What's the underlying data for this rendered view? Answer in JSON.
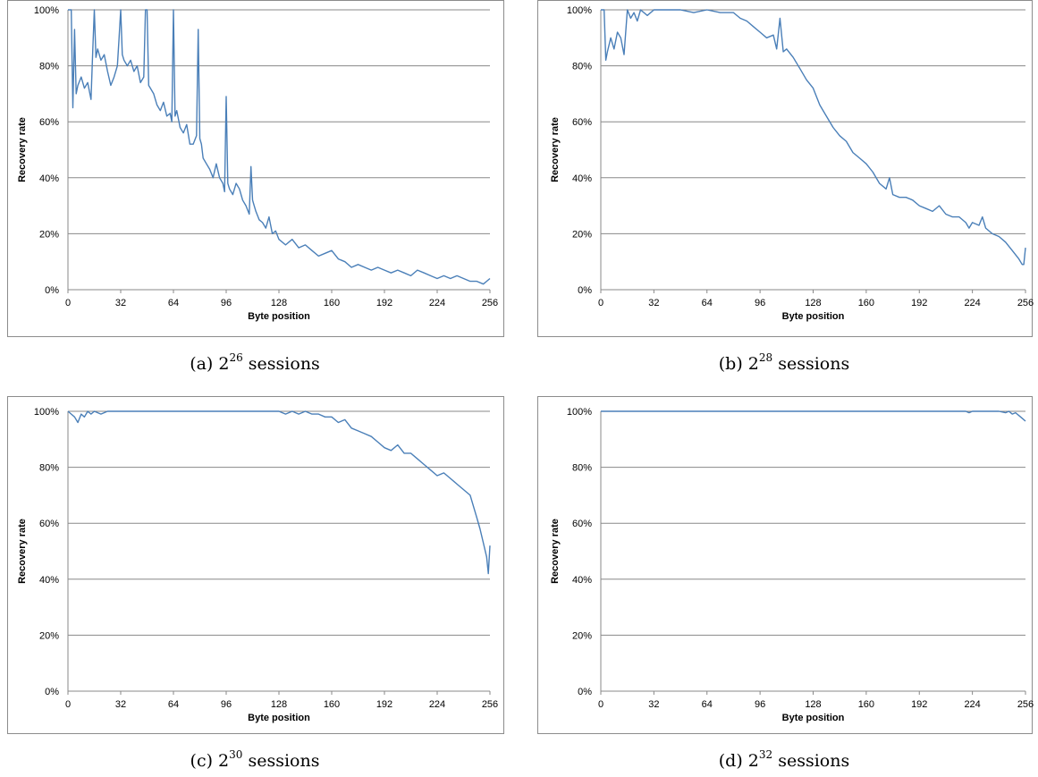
{
  "captions": [
    {
      "prefix": "(a) ",
      "base": "2",
      "exp": "26",
      "suffix": " sessions"
    },
    {
      "prefix": "(b) ",
      "base": "2",
      "exp": "28",
      "suffix": " sessions"
    },
    {
      "prefix": "(c) ",
      "base": "2",
      "exp": "30",
      "suffix": " sessions"
    },
    {
      "prefix": "(d) ",
      "base": "2",
      "exp": "32",
      "suffix": " sessions"
    }
  ],
  "colors": {
    "line": "#4a7fb8",
    "grid": "#888888",
    "axis": "#888888"
  },
  "chart_data": [
    {
      "type": "line",
      "xlabel": "Byte position",
      "ylabel": "Recovery rate",
      "xlim": [
        0,
        256
      ],
      "ylim": [
        0,
        100
      ],
      "xticks": [
        "0",
        "32",
        "64",
        "96",
        "128",
        "160",
        "192",
        "224",
        "256"
      ],
      "yticks": [
        "0%",
        "20%",
        "40%",
        "60%",
        "80%",
        "100%"
      ],
      "grid": true,
      "series": [
        {
          "x": [
            0,
            1,
            2,
            3,
            4,
            5,
            6,
            8,
            10,
            12,
            14,
            15,
            16,
            17,
            18,
            20,
            22,
            24,
            26,
            28,
            30,
            31,
            32,
            33,
            34,
            36,
            38,
            40,
            42,
            44,
            46,
            47,
            48,
            49,
            50,
            52,
            54,
            56,
            58,
            60,
            62,
            63,
            64,
            65,
            66,
            68,
            70,
            72,
            74,
            76,
            78,
            79,
            80,
            81,
            82,
            84,
            86,
            88,
            90,
            92,
            94,
            95,
            96,
            97,
            98,
            100,
            102,
            104,
            106,
            108,
            110,
            111,
            112,
            113,
            114,
            116,
            118,
            120,
            122,
            124,
            126,
            128,
            132,
            136,
            140,
            144,
            148,
            152,
            156,
            160,
            164,
            168,
            172,
            176,
            180,
            184,
            188,
            192,
            196,
            200,
            204,
            208,
            212,
            216,
            220,
            224,
            228,
            232,
            236,
            240,
            244,
            248,
            252,
            254,
            256
          ],
          "y": [
            100,
            100,
            100,
            65,
            93,
            70,
            73,
            76,
            72,
            74,
            68,
            85,
            100,
            83,
            86,
            82,
            84,
            78,
            73,
            76,
            80,
            90,
            100,
            84,
            82,
            80,
            82,
            78,
            80,
            74,
            76,
            100,
            100,
            73,
            72,
            70,
            66,
            64,
            67,
            62,
            63,
            60,
            100,
            62,
            64,
            58,
            56,
            59,
            52,
            52,
            55,
            93,
            54,
            52,
            47,
            45,
            43,
            40,
            45,
            40,
            38,
            35,
            69,
            38,
            36,
            34,
            38,
            36,
            32,
            30,
            27,
            44,
            32,
            30,
            28,
            25,
            24,
            22,
            26,
            20,
            21,
            18,
            16,
            18,
            15,
            16,
            14,
            12,
            13,
            14,
            11,
            10,
            8,
            9,
            8,
            7,
            8,
            7,
            6,
            7,
            6,
            5,
            7,
            6,
            5,
            4,
            5,
            4,
            5,
            4,
            3,
            3,
            2,
            3,
            4
          ]
        }
      ]
    },
    {
      "type": "line",
      "xlabel": "Byte position",
      "ylabel": "Recovery rate",
      "xlim": [
        0,
        256
      ],
      "ylim": [
        0,
        100
      ],
      "xticks": [
        "0",
        "32",
        "64",
        "96",
        "128",
        "160",
        "192",
        "224",
        "256"
      ],
      "yticks": [
        "0%",
        "20%",
        "40%",
        "60%",
        "80%",
        "100%"
      ],
      "grid": true,
      "series": [
        {
          "x": [
            0,
            2,
            3,
            4,
            6,
            8,
            10,
            12,
            14,
            16,
            18,
            20,
            22,
            24,
            28,
            32,
            40,
            48,
            56,
            64,
            72,
            80,
            84,
            88,
            92,
            96,
            100,
            104,
            106,
            108,
            110,
            112,
            116,
            120,
            124,
            128,
            132,
            136,
            140,
            144,
            148,
            152,
            156,
            160,
            164,
            168,
            172,
            174,
            176,
            180,
            184,
            188,
            192,
            196,
            200,
            204,
            208,
            212,
            216,
            220,
            222,
            224,
            228,
            230,
            232,
            236,
            240,
            244,
            248,
            252,
            254,
            255,
            256
          ],
          "y": [
            100,
            100,
            82,
            85,
            90,
            86,
            92,
            90,
            84,
            100,
            97,
            99,
            96,
            100,
            98,
            100,
            100,
            100,
            99,
            100,
            99,
            99,
            97,
            96,
            94,
            92,
            90,
            91,
            86,
            97,
            85,
            86,
            83,
            79,
            75,
            72,
            66,
            62,
            58,
            55,
            53,
            49,
            47,
            45,
            42,
            38,
            36,
            40,
            34,
            33,
            33,
            32,
            30,
            29,
            28,
            30,
            27,
            26,
            26,
            24,
            22,
            24,
            23,
            26,
            22,
            20,
            19,
            17,
            14,
            11,
            9,
            9,
            15
          ]
        }
      ]
    },
    {
      "type": "line",
      "xlabel": "Byte position",
      "ylabel": "Recovery rate",
      "xlim": [
        0,
        256
      ],
      "ylim": [
        0,
        100
      ],
      "xticks": [
        "0",
        "32",
        "64",
        "96",
        "128",
        "160",
        "192",
        "224",
        "256"
      ],
      "yticks": [
        "0%",
        "20%",
        "40%",
        "60%",
        "80%",
        "100%"
      ],
      "grid": true,
      "series": [
        {
          "x": [
            0,
            2,
            4,
            6,
            8,
            10,
            12,
            14,
            16,
            20,
            24,
            32,
            64,
            96,
            128,
            132,
            136,
            140,
            144,
            148,
            152,
            156,
            160,
            164,
            168,
            172,
            176,
            180,
            184,
            188,
            192,
            196,
            200,
            204,
            208,
            212,
            216,
            220,
            224,
            228,
            232,
            236,
            240,
            244,
            246,
            248,
            250,
            252,
            254,
            255,
            256
          ],
          "y": [
            100,
            99,
            98,
            96,
            99,
            98,
            100,
            99,
            100,
            99,
            100,
            100,
            100,
            100,
            100,
            99,
            100,
            99,
            100,
            99,
            99,
            98,
            98,
            96,
            97,
            94,
            93,
            92,
            91,
            89,
            87,
            86,
            88,
            85,
            85,
            83,
            81,
            79,
            77,
            78,
            76,
            74,
            72,
            70,
            66,
            62,
            58,
            53,
            48,
            42,
            52
          ]
        }
      ]
    },
    {
      "type": "line",
      "xlabel": "Byte position",
      "ylabel": "Recovery rate",
      "xlim": [
        0,
        256
      ],
      "ylim": [
        0,
        100
      ],
      "xticks": [
        "0",
        "32",
        "64",
        "96",
        "128",
        "160",
        "192",
        "224",
        "256"
      ],
      "yticks": [
        "0%",
        "20%",
        "40%",
        "60%",
        "80%",
        "100%"
      ],
      "grid": true,
      "series": [
        {
          "x": [
            0,
            64,
            128,
            192,
            220,
            222,
            224,
            230,
            236,
            240,
            244,
            246,
            248,
            250,
            252,
            254,
            256
          ],
          "y": [
            100,
            100,
            100,
            100,
            100,
            99.5,
            100,
            100,
            100,
            100,
            99.5,
            100,
            99,
            99.5,
            98.5,
            97.5,
            96.5
          ]
        }
      ]
    }
  ]
}
